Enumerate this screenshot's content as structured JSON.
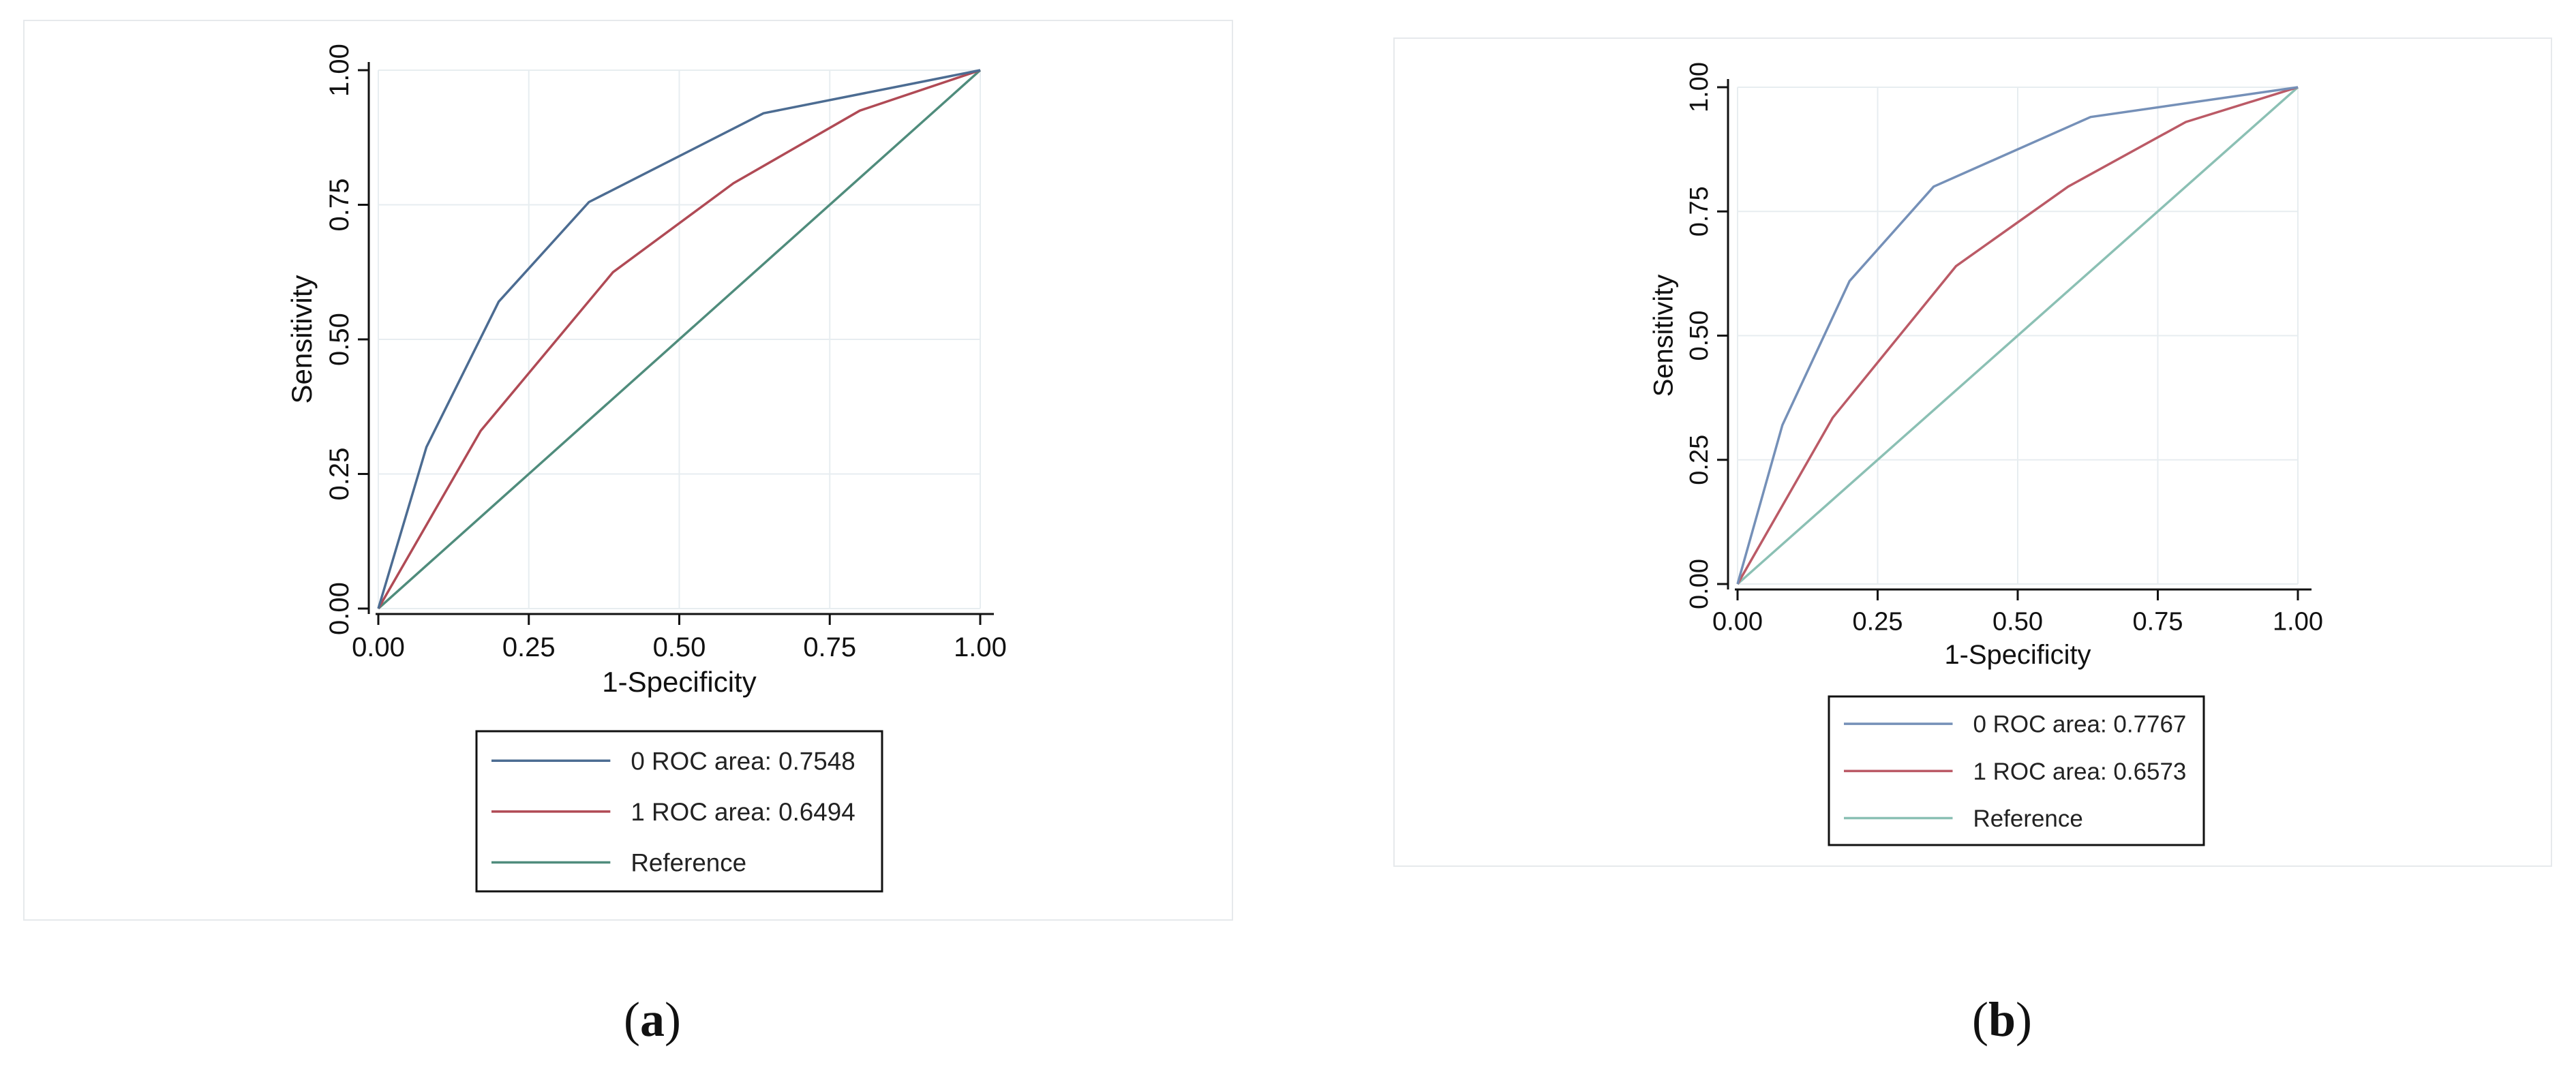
{
  "chart_data": [
    {
      "type": "line",
      "xlabel": "1-Specificity",
      "ylabel": "Sensitivity",
      "xlim": [
        0,
        1
      ],
      "ylim": [
        0,
        1
      ],
      "xticks": [
        "0.00",
        "0.25",
        "0.50",
        "0.75",
        "1.00"
      ],
      "yticks": [
        "0.00",
        "0.25",
        "0.50",
        "0.75",
        "1.00"
      ],
      "grid": true,
      "legend": "bottom",
      "series": [
        {
          "name": "0 ROC area: 0.7548",
          "color": "#4c6c92",
          "x": [
            0,
            0.08,
            0.2,
            0.35,
            0.64,
            1.0
          ],
          "y": [
            0,
            0.3,
            0.57,
            0.755,
            0.92,
            1.0
          ]
        },
        {
          "name": "1 ROC area: 0.6494",
          "color": "#b04a55",
          "x": [
            0,
            0.17,
            0.39,
            0.59,
            0.8,
            1.0
          ],
          "y": [
            0,
            0.33,
            0.625,
            0.79,
            0.925,
            1.0
          ]
        },
        {
          "name": "Reference",
          "color": "#4f8c7c",
          "x": [
            0,
            1.0
          ],
          "y": [
            0,
            1.0
          ]
        }
      ]
    },
    {
      "type": "line",
      "xlabel": "1-Specificity",
      "ylabel": "Sensitivity",
      "xlim": [
        0,
        1
      ],
      "ylim": [
        0,
        1
      ],
      "xticks": [
        "0.00",
        "0.25",
        "0.50",
        "0.75",
        "1.00"
      ],
      "yticks": [
        "0.00",
        "0.25",
        "0.50",
        "0.75",
        "1.00"
      ],
      "grid": true,
      "legend": "bottom",
      "series": [
        {
          "name": "0 ROC area: 0.7767",
          "color": "#7590b8",
          "x": [
            0,
            0.08,
            0.2,
            0.35,
            0.63,
            1.0
          ],
          "y": [
            0,
            0.32,
            0.61,
            0.8,
            0.94,
            1.0
          ]
        },
        {
          "name": "1 ROC area: 0.6573",
          "color": "#bb5a66",
          "x": [
            0,
            0.17,
            0.39,
            0.59,
            0.8,
            1.0
          ],
          "y": [
            0,
            0.335,
            0.64,
            0.8,
            0.93,
            1.0
          ]
        },
        {
          "name": "Reference",
          "color": "#8bc0b4",
          "x": [
            0,
            1.0
          ],
          "y": [
            0,
            1.0
          ]
        }
      ]
    }
  ],
  "captions": [
    "a",
    "b"
  ]
}
